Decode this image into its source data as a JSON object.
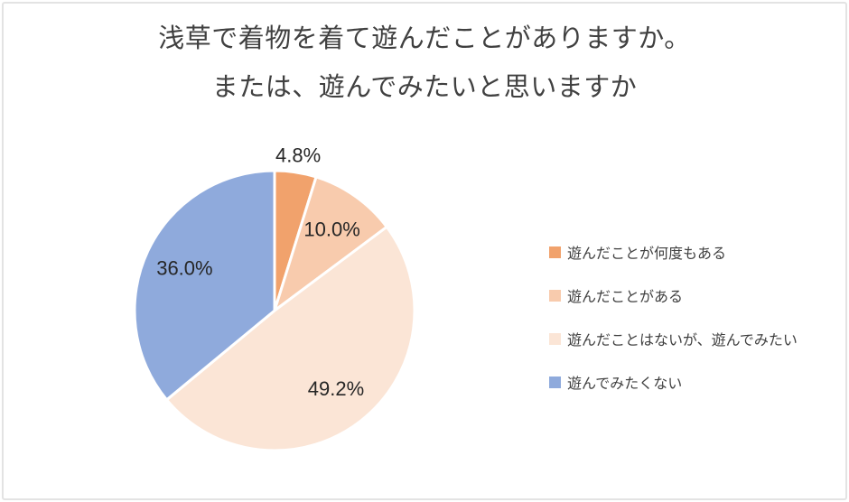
{
  "page": {
    "background": "#FFFFFF",
    "frame_border_color": "#E3E3E3"
  },
  "chart_data": {
    "type": "pie",
    "title": "浅草で着物を着て遊んだことがありますか。または、遊んでみたいと思いますか",
    "title_lines": [
      "浅草で着物を着て遊んだことがありますか。",
      "または、遊んでみたいと思いますか"
    ],
    "start_angle_deg": 0,
    "direction": "clockwise",
    "legend_position": "right",
    "slice_separator_color": "#FFFFFF",
    "label_color": "#262626",
    "title_color": "#404040",
    "segments": [
      {
        "legend_label": "遊んだことが何度もある",
        "value": 4.8,
        "data_label": "4.8%",
        "color": "#F1A26C",
        "label_placement": "outside"
      },
      {
        "legend_label": "遊んだことがある",
        "value": 10.0,
        "data_label": "10.0%",
        "color": "#F8CBAD",
        "label_placement": "inside"
      },
      {
        "legend_label": "遊んだことはないが、遊んでみたい",
        "value": 49.2,
        "data_label": "49.2%",
        "color": "#FBE5D6",
        "label_placement": "inside"
      },
      {
        "legend_label": "遊んでみたくない",
        "value": 36.0,
        "data_label": "36.0%",
        "color": "#8FAADC",
        "label_placement": "inside"
      }
    ]
  }
}
